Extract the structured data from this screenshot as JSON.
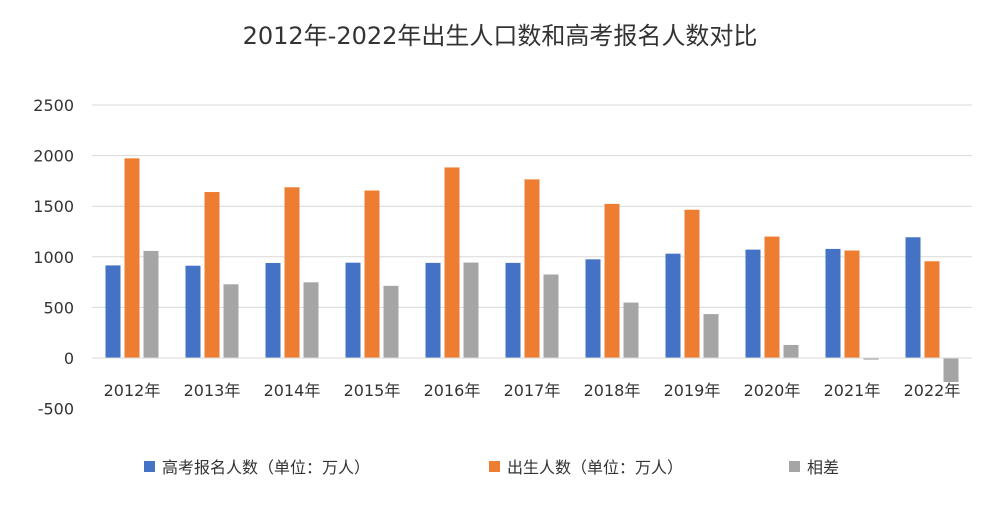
{
  "chart_data": {
    "type": "bar",
    "title": "2012年-2022年出生人口数和高考报名人数对比",
    "xlabel": "",
    "ylabel": "",
    "ylim": [
      -500,
      2500
    ],
    "yticks": [
      -500,
      0,
      500,
      1000,
      1500,
      2000,
      2500
    ],
    "grid": true,
    "legend_position": "bottom",
    "categories": [
      "2012年",
      "2013年",
      "2014年",
      "2015年",
      "2016年",
      "2017年",
      "2018年",
      "2019年",
      "2020年",
      "2021年",
      "2022年"
    ],
    "series": [
      {
        "name": "高考报名人数（单位：万人）",
        "color": "#4472C4",
        "values": [
          915,
          912,
          939,
          942,
          940,
          940,
          975,
          1031,
          1071,
          1078,
          1193
        ]
      },
      {
        "name": "出生人数（单位：万人）",
        "color": "#ED7D31",
        "values": [
          1973,
          1640,
          1687,
          1655,
          1883,
          1765,
          1523,
          1465,
          1200,
          1062,
          956
        ]
      },
      {
        "name": "相差",
        "color": "#A5A5A5",
        "values": [
          1058,
          728,
          748,
          713,
          943,
          825,
          548,
          434,
          129,
          -16,
          -237
        ]
      }
    ]
  }
}
